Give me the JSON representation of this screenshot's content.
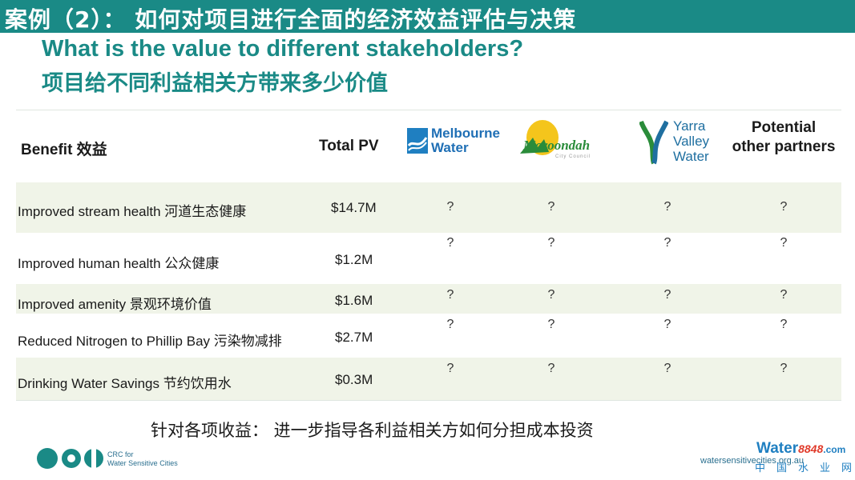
{
  "title_bar": "案例（2）： 如何对项目进行全面的经济效益评估与决策",
  "heading_en": "What is the value to different stakeholders?",
  "heading_zh": "项目给不同利益相关方带来多少价值",
  "table": {
    "headers": {
      "benefit": "Benefit  效益",
      "total_pv": "Total PV",
      "melbourne_water_line1": "Melbourne",
      "melbourne_water_line2": "Water",
      "maroondah": "Maroondah",
      "maroondah_sub": "City Council",
      "yarra_line1": "Yarra",
      "yarra_line2": "Valley",
      "yarra_line3": "Water",
      "potential_line1": "Potential",
      "potential_line2": "other partners"
    },
    "rows": [
      {
        "benefit": "Improved stream health 河道生态健康",
        "pv": "$14.7M",
        "mw": "?",
        "mar": "?",
        "yv": "?",
        "other": "?"
      },
      {
        "benefit": "Improved human health 公众健康",
        "pv": "$1.2M",
        "mw": "?",
        "mar": "?",
        "yv": "?",
        "other": "?"
      },
      {
        "benefit": "Improved amenity 景观环境价值",
        "pv": "$1.6M",
        "mw": "?",
        "mar": "?",
        "yv": "?",
        "other": "?"
      },
      {
        "benefit": "Reduced Nitrogen to Phillip Bay 污染物减排",
        "pv": "$2.7M",
        "mw": "?",
        "mar": "?",
        "yv": "?",
        "other": "?"
      },
      {
        "benefit": "Drinking Water Savings 节约饮用水",
        "pv": "$0.3M",
        "mw": "?",
        "mar": "?",
        "yv": "?",
        "other": "?"
      }
    ]
  },
  "footer_note": "针对各项收益： 进一步指导各利益相关方如何分担成本投资",
  "crc_logo": {
    "line1": "CRC for",
    "line2": "Water Sensitive Cities"
  },
  "website": "watersensitivecities.org.au",
  "watermark": {
    "brand": "Water",
    "number": "8848",
    "suffix": ".com",
    "cn": "中国水业网"
  },
  "colors": {
    "teal": "#1a8a86",
    "band": "#f0f4e8",
    "mw_blue": "#1f7fc1",
    "maroondah_green": "#2a8c3a",
    "maroondah_yellow": "#f4c51c"
  }
}
